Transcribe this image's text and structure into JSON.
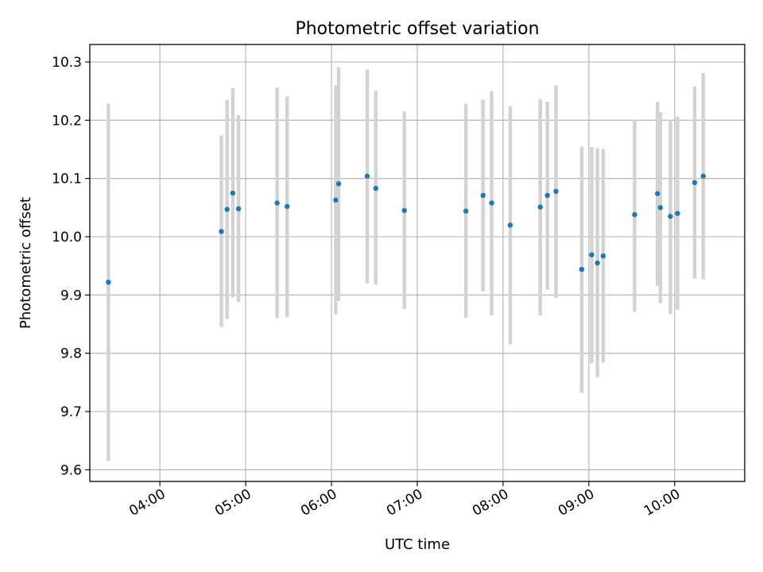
{
  "chart_data": {
    "type": "scatter",
    "title": "Photometric offset variation",
    "xlabel": "UTC time",
    "ylabel": "Photometric offset",
    "x_is_time": true,
    "xlim": [
      "03:11",
      "10:49"
    ],
    "ylim": [
      9.58,
      10.33
    ],
    "x_ticks": [
      "04:00",
      "05:00",
      "06:00",
      "07:00",
      "08:00",
      "09:00",
      "10:00"
    ],
    "y_ticks": [
      9.6,
      9.7,
      9.8,
      9.9,
      10.0,
      10.1,
      10.2,
      10.3
    ],
    "grid": true,
    "point_color": "#1f77b4",
    "errorbar_color": "#d3d3d3",
    "points": [
      {
        "time": "03:24",
        "y": 9.922,
        "yerr_low": 9.615,
        "yerr_high": 10.228
      },
      {
        "time": "04:43",
        "y": 10.009,
        "yerr_low": 9.845,
        "yerr_high": 10.174
      },
      {
        "time": "04:47",
        "y": 10.047,
        "yerr_low": 9.859,
        "yerr_high": 10.235
      },
      {
        "time": "04:51",
        "y": 10.075,
        "yerr_low": 9.896,
        "yerr_high": 10.255
      },
      {
        "time": "04:55",
        "y": 10.048,
        "yerr_low": 9.888,
        "yerr_high": 10.209
      },
      {
        "time": "05:22",
        "y": 10.058,
        "yerr_low": 9.86,
        "yerr_high": 10.256
      },
      {
        "time": "05:29",
        "y": 10.052,
        "yerr_low": 9.862,
        "yerr_high": 10.241
      },
      {
        "time": "06:03",
        "y": 10.063,
        "yerr_low": 9.867,
        "yerr_high": 10.26
      },
      {
        "time": "06:05",
        "y": 10.091,
        "yerr_low": 9.89,
        "yerr_high": 10.291
      },
      {
        "time": "06:25",
        "y": 10.104,
        "yerr_low": 9.92,
        "yerr_high": 10.287
      },
      {
        "time": "06:31",
        "y": 10.083,
        "yerr_low": 9.918,
        "yerr_high": 10.25
      },
      {
        "time": "06:51",
        "y": 10.045,
        "yerr_low": 9.876,
        "yerr_high": 10.215
      },
      {
        "time": "07:34",
        "y": 10.044,
        "yerr_low": 9.861,
        "yerr_high": 10.228
      },
      {
        "time": "07:46",
        "y": 10.071,
        "yerr_low": 9.906,
        "yerr_high": 10.235
      },
      {
        "time": "07:52",
        "y": 10.058,
        "yerr_low": 9.865,
        "yerr_high": 10.25
      },
      {
        "time": "08:05",
        "y": 10.02,
        "yerr_low": 9.815,
        "yerr_high": 10.224
      },
      {
        "time": "08:26",
        "y": 10.051,
        "yerr_low": 9.865,
        "yerr_high": 10.236
      },
      {
        "time": "08:31",
        "y": 10.071,
        "yerr_low": 9.909,
        "yerr_high": 10.232
      },
      {
        "time": "08:37",
        "y": 10.078,
        "yerr_low": 9.895,
        "yerr_high": 10.26
      },
      {
        "time": "08:55",
        "y": 9.944,
        "yerr_low": 9.732,
        "yerr_high": 10.155
      },
      {
        "time": "09:02",
        "y": 9.969,
        "yerr_low": 9.783,
        "yerr_high": 10.154
      },
      {
        "time": "09:06",
        "y": 9.955,
        "yerr_low": 9.759,
        "yerr_high": 10.152
      },
      {
        "time": "09:10",
        "y": 9.967,
        "yerr_low": 9.784,
        "yerr_high": 10.151
      },
      {
        "time": "09:32",
        "y": 10.038,
        "yerr_low": 9.871,
        "yerr_high": 10.201
      },
      {
        "time": "09:48",
        "y": 10.074,
        "yerr_low": 9.916,
        "yerr_high": 10.232
      },
      {
        "time": "09:50",
        "y": 10.05,
        "yerr_low": 9.886,
        "yerr_high": 10.214
      },
      {
        "time": "09:57",
        "y": 10.035,
        "yerr_low": 9.867,
        "yerr_high": 10.201
      },
      {
        "time": "10:02",
        "y": 10.04,
        "yerr_low": 9.875,
        "yerr_high": 10.206
      },
      {
        "time": "10:14",
        "y": 10.093,
        "yerr_low": 9.928,
        "yerr_high": 10.258
      },
      {
        "time": "10:20",
        "y": 10.104,
        "yerr_low": 9.927,
        "yerr_high": 10.281
      }
    ]
  }
}
